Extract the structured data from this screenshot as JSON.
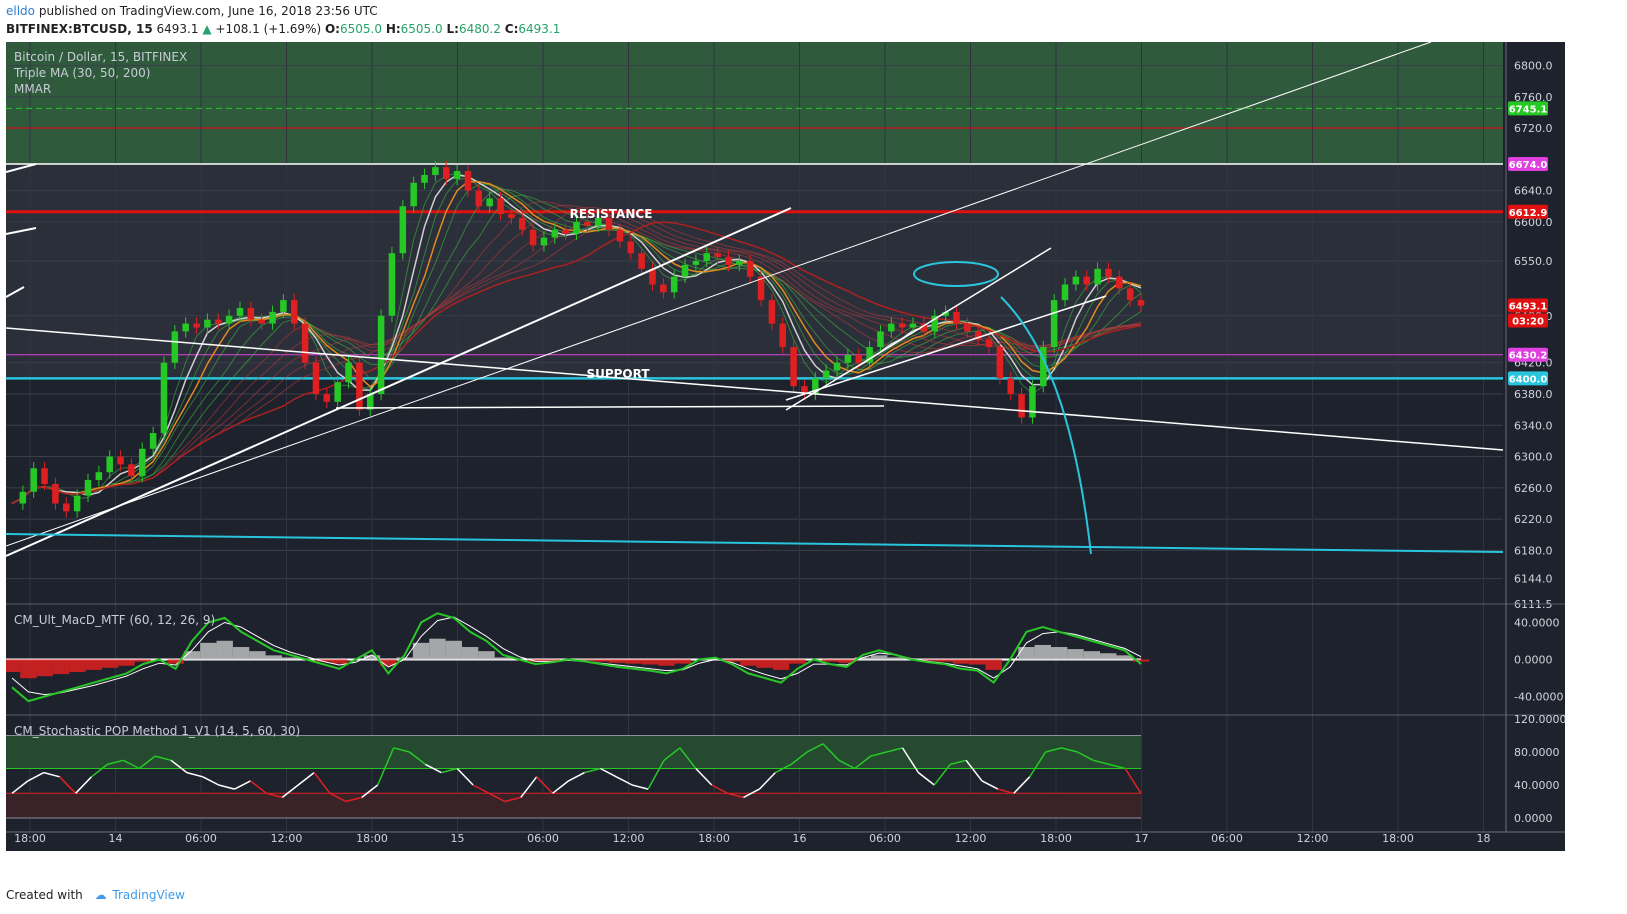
{
  "header": {
    "user": "elldo",
    "published": "published on TradingView.com, June 16, 2018 23:56 UTC",
    "symbol": "BITFINEX:BTCUSD, 15",
    "last": "6493.1",
    "change": "+108.1 (+1.69%)",
    "o_label": "O:",
    "o": "6505.0",
    "h_label": "H:",
    "h": "6505.0",
    "l_label": "L:",
    "l": "6480.2",
    "c_label": "C:",
    "c": "6493.1"
  },
  "legend": {
    "title": "Bitcoin / Dollar, 15, BITFINEX",
    "ind1": "Triple MA (30, 50, 200)",
    "ind2": "MMAR",
    "macd": "CM_Ult_MacD_MTF (60, 12, 26, 9)",
    "stoch": "CM_Stochastic POP Method 1_V1 (14, 5, 60, 30)"
  },
  "annotations": {
    "resistance": "RESISTANCE",
    "support": "SUPPORT"
  },
  "footer": {
    "created": "Created with",
    "brand": "TradingView"
  },
  "colors": {
    "bg": "#1e222d",
    "bull": "#26c826",
    "bear": "#e02020",
    "cyan": "#29c5dc",
    "magenta": "#e040e0",
    "red_level": "#e01010"
  },
  "chart_data": [
    {
      "type": "candlestick",
      "title": "Bitcoin / Dollar, 15, BITFINEX",
      "ylim": [
        6111.5,
        6830
      ],
      "price_ticks": [
        "6800.0",
        "6760.0",
        "6720.0",
        "6640.0",
        "6600.0",
        "6550.0",
        "6480.0",
        "6420.0",
        "6380.0",
        "6340.0",
        "6300.0",
        "6260.0",
        "6220.0",
        "6180.0",
        "6144.0",
        "6111.5"
      ],
      "time_ticks": [
        "18:00",
        "14",
        "06:00",
        "12:00",
        "18:00",
        "15",
        "06:00",
        "12:00",
        "18:00",
        "16",
        "06:00",
        "12:00",
        "18:00",
        "17",
        "06:00",
        "12:00",
        "18:00",
        "18"
      ],
      "price_labels": [
        {
          "value": 6745.1,
          "text": "6745.1",
          "color": "#26c826"
        },
        {
          "value": 6674.0,
          "text": "6674.0",
          "color": "#e040e0"
        },
        {
          "value": 6612.9,
          "text": "6612.9",
          "color": "#e01010"
        },
        {
          "value": 6493.1,
          "text": "6493.1",
          "color": "#e01010"
        },
        {
          "value": 6474.0,
          "text": "03:20",
          "color": "#e01010"
        },
        {
          "value": 6430.2,
          "text": "6430.2",
          "color": "#e040e0"
        },
        {
          "value": 6400.0,
          "text": "6400.0",
          "color": "#29c5dc"
        }
      ],
      "levels": [
        {
          "name": "resistance",
          "value": 6612.9
        },
        {
          "name": "support",
          "value": 6400.0
        },
        {
          "name": "magenta",
          "value": 6430.2
        },
        {
          "name": "white-top",
          "value": 6674.0
        },
        {
          "name": "green-dashed",
          "value": 6745.1
        },
        {
          "name": "red-top",
          "value": 6720.0
        }
      ],
      "close_path": [
        6240,
        6255,
        6285,
        6265,
        6240,
        6230,
        6250,
        6270,
        6280,
        6300,
        6290,
        6275,
        6310,
        6330,
        6420,
        6460,
        6470,
        6465,
        6475,
        6470,
        6480,
        6490,
        6475,
        6470,
        6485,
        6500,
        6470,
        6420,
        6380,
        6370,
        6395,
        6420,
        6360,
        6380,
        6480,
        6560,
        6620,
        6650,
        6660,
        6670,
        6655,
        6665,
        6640,
        6620,
        6630,
        6610,
        6605,
        6590,
        6570,
        6580,
        6590,
        6585,
        6600,
        6595,
        6605,
        6590,
        6575,
        6560,
        6540,
        6520,
        6510,
        6530,
        6545,
        6550,
        6560,
        6555,
        6545,
        6550,
        6530,
        6500,
        6470,
        6440,
        6390,
        6380,
        6400,
        6410,
        6420,
        6430,
        6420,
        6440,
        6460,
        6470,
        6465,
        6470,
        6460,
        6480,
        6485,
        6470,
        6460,
        6450,
        6440,
        6400,
        6380,
        6350,
        6390,
        6440,
        6500,
        6520,
        6530,
        6520,
        6540,
        6530,
        6515,
        6500,
        6493
      ]
    },
    {
      "type": "line",
      "title": "CM_Ult_MacD_MTF (60, 12, 26, 9)",
      "ylim": [
        -60,
        60
      ],
      "ticks": [
        "40.0000",
        "0.0000",
        "-40.0000"
      ],
      "macd": [
        -30,
        -45,
        -40,
        -35,
        -30,
        -25,
        -20,
        -15,
        -5,
        0,
        -10,
        20,
        40,
        45,
        30,
        20,
        10,
        5,
        0,
        -5,
        -10,
        0,
        10,
        -15,
        5,
        40,
        50,
        45,
        30,
        20,
        5,
        0,
        -5,
        -3,
        0,
        -2,
        -5,
        -8,
        -10,
        -12,
        -15,
        -10,
        0,
        2,
        -5,
        -15,
        -20,
        -25,
        -10,
        0,
        -5,
        -8,
        5,
        10,
        5,
        0,
        -3,
        -5,
        -10,
        -12,
        -25,
        0,
        30,
        35,
        30,
        25,
        20,
        15,
        10,
        -5
      ],
      "signal": [
        -20,
        -35,
        -38,
        -36,
        -32,
        -28,
        -23,
        -18,
        -10,
        -4,
        -6,
        10,
        30,
        40,
        35,
        25,
        15,
        8,
        3,
        -2,
        -6,
        -3,
        5,
        -8,
        0,
        25,
        42,
        46,
        36,
        25,
        12,
        3,
        -2,
        -2,
        -1,
        -2,
        -4,
        -6,
        -8,
        -10,
        -12,
        -11,
        -4,
        0,
        -3,
        -10,
        -16,
        -21,
        -15,
        -5,
        -5,
        -6,
        2,
        7,
        5,
        1,
        -2,
        -4,
        -7,
        -10,
        -20,
        -8,
        18,
        28,
        30,
        27,
        22,
        17,
        12,
        3
      ]
    },
    {
      "type": "line",
      "title": "CM_Stochastic POP Method 1_V1 (14, 5, 60, 30)",
      "ylim": [
        0,
        120
      ],
      "ticks": [
        "120.0000",
        "80.0000",
        "40.0000",
        "0.0000"
      ],
      "levels": [
        60,
        30
      ],
      "stoch": [
        30,
        45,
        55,
        50,
        30,
        50,
        65,
        70,
        60,
        75,
        70,
        55,
        50,
        40,
        35,
        45,
        30,
        25,
        40,
        55,
        30,
        20,
        25,
        40,
        85,
        80,
        65,
        55,
        60,
        40,
        30,
        20,
        25,
        50,
        30,
        45,
        55,
        60,
        50,
        40,
        35,
        70,
        85,
        60,
        40,
        30,
        25,
        35,
        55,
        65,
        80,
        90,
        70,
        60,
        75,
        80,
        85,
        55,
        40,
        65,
        70,
        45,
        35,
        30,
        50,
        80,
        85,
        80,
        70,
        65,
        60,
        30
      ]
    }
  ]
}
